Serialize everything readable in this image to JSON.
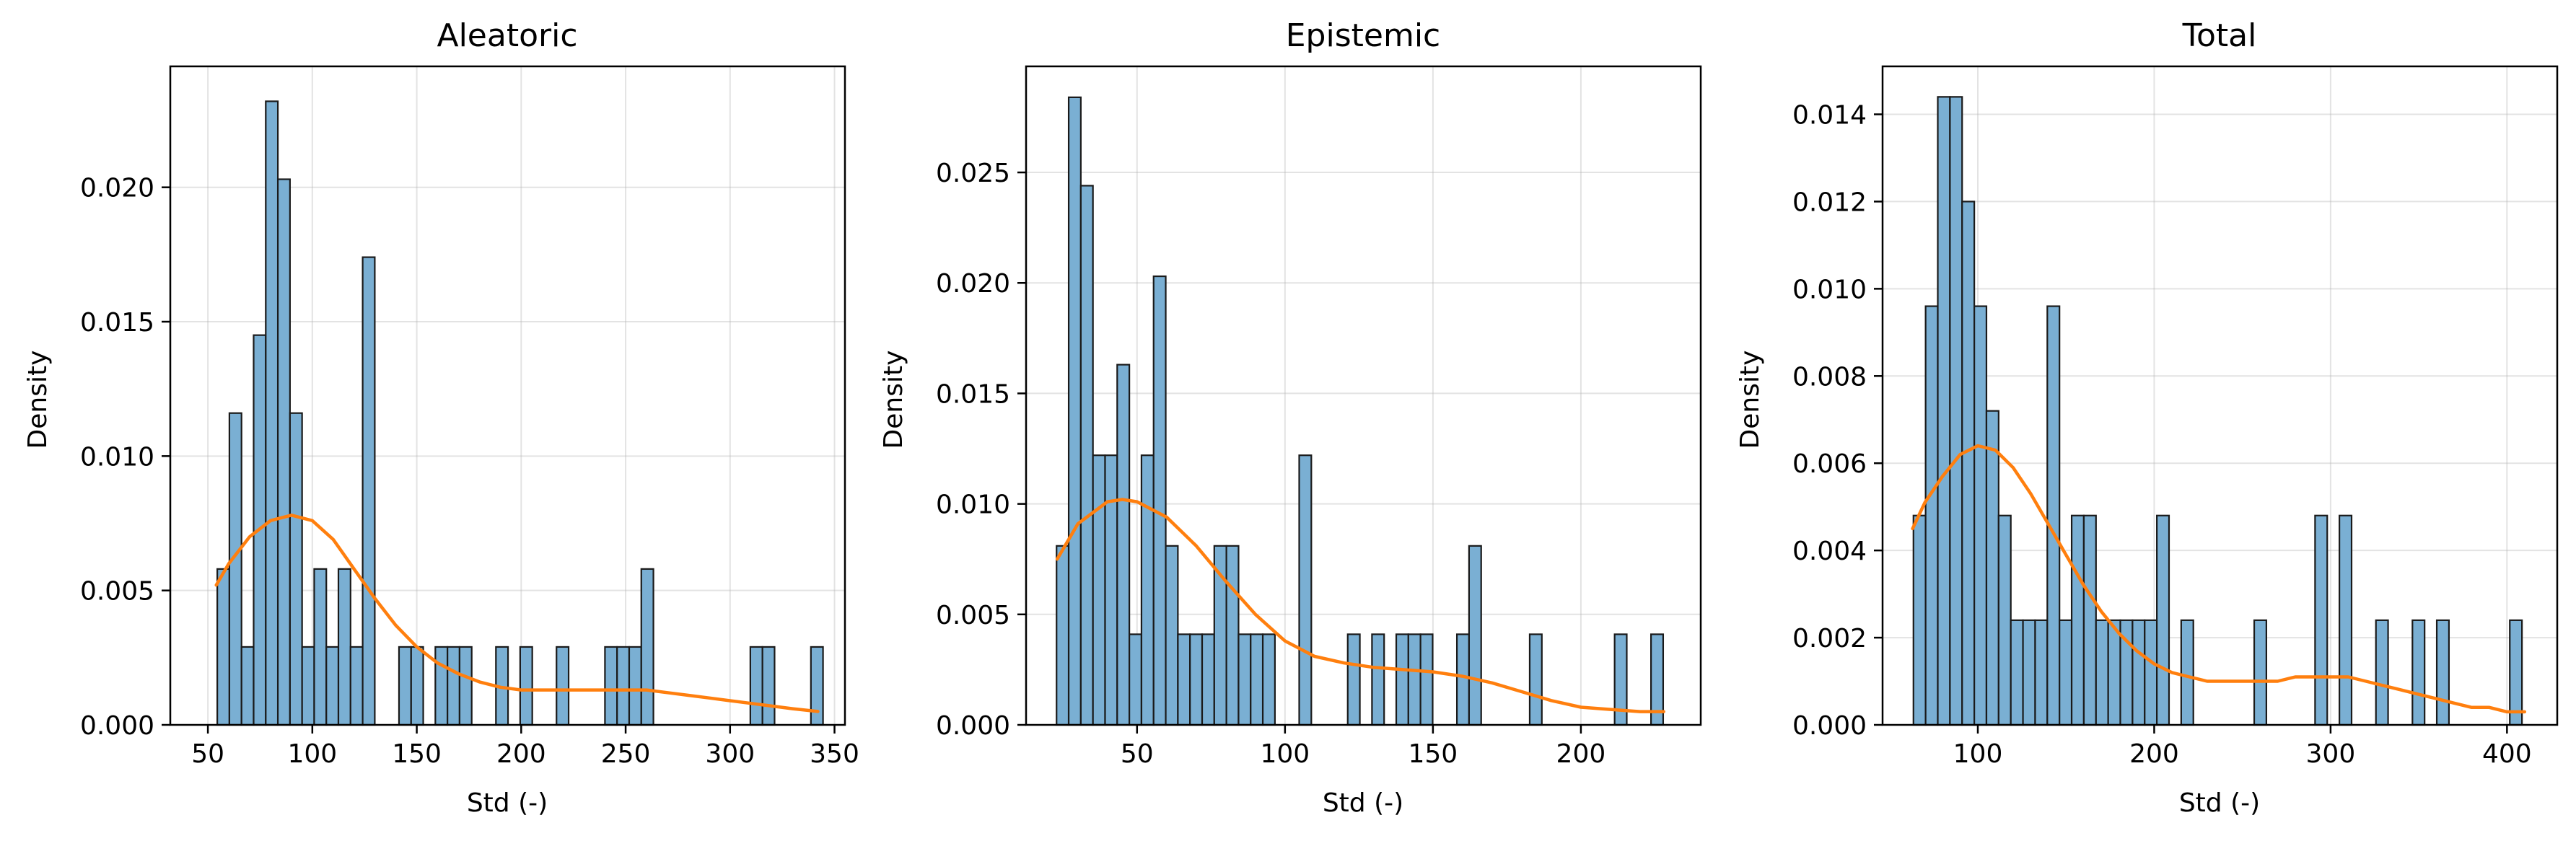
{
  "colors": {
    "bar_fill": "#7aafd3",
    "bar_edge": "#1a1a1a",
    "kde_line": "#ff7f0e",
    "background": "#ffffff"
  },
  "chart_data": [
    {
      "type": "bar",
      "title": "Aleatoric",
      "xlabel": "Std (-)",
      "ylabel": "Density",
      "grid": true,
      "xlim": [
        32,
        355
      ],
      "ylim": [
        0,
        0.0245
      ],
      "xticks": [
        50,
        100,
        150,
        200,
        250,
        300,
        350
      ],
      "xtick_labels": [
        "50",
        "100",
        "150",
        "200",
        "250",
        "300",
        "350"
      ],
      "yticks": [
        0.0,
        0.005,
        0.01,
        0.015,
        0.02
      ],
      "ytick_labels": [
        "0.000",
        "0.005",
        "0.010",
        "0.015",
        "0.020"
      ],
      "bin_edges": [
        54.5,
        60.3,
        66.1,
        71.9,
        77.7,
        83.5,
        89.3,
        95.1,
        100.9,
        106.7,
        112.5,
        118.3,
        124.1,
        129.9,
        135.7,
        141.5,
        147.3,
        153.1,
        158.9,
        164.7,
        170.5,
        176.3,
        182.1,
        187.9,
        193.7,
        199.5,
        205.3,
        211.1,
        216.9,
        222.7,
        228.5,
        234.3,
        240.1,
        245.9,
        251.7,
        257.5,
        263.3,
        269.1,
        274.9,
        280.7,
        286.5,
        292.3,
        298.1,
        303.9,
        309.7,
        315.5,
        321.3,
        327.1,
        332.9,
        338.7,
        344.5
      ],
      "density": [
        0.0058,
        0.0116,
        0.0029,
        0.0145,
        0.0232,
        0.0203,
        0.0116,
        0.0029,
        0.0058,
        0.0029,
        0.0058,
        0.0029,
        0.0174,
        0.0,
        0.0,
        0.0029,
        0.0029,
        0.0,
        0.0029,
        0.0029,
        0.0029,
        0.0,
        0.0,
        0.0029,
        0.0,
        0.0029,
        0.0,
        0.0,
        0.0029,
        0.0,
        0.0,
        0.0,
        0.0029,
        0.0029,
        0.0029,
        0.0058,
        0.0,
        0.0,
        0.0,
        0.0,
        0.0,
        0.0,
        0.0,
        0.0,
        0.0029,
        0.0029,
        0.0,
        0.0,
        0.0,
        0.0029
      ],
      "kde": {
        "x": [
          54,
          60,
          70,
          80,
          90,
          100,
          110,
          120,
          130,
          140,
          150,
          160,
          170,
          180,
          190,
          200,
          210,
          220,
          230,
          240,
          250,
          260,
          270,
          280,
          290,
          300,
          310,
          320,
          330,
          342
        ],
        "y": [
          0.0052,
          0.006,
          0.007,
          0.0076,
          0.0078,
          0.0076,
          0.0069,
          0.0058,
          0.0047,
          0.0037,
          0.0029,
          0.0023,
          0.0019,
          0.0016,
          0.0014,
          0.0013,
          0.0013,
          0.0013,
          0.0013,
          0.0013,
          0.0013,
          0.0013,
          0.0012,
          0.0011,
          0.001,
          0.0009,
          0.0008,
          0.0007,
          0.0006,
          0.0005
        ]
      }
    },
    {
      "type": "bar",
      "title": "Epistemic",
      "xlabel": "Std (-)",
      "ylabel": "Density",
      "grid": true,
      "xlim": [
        12.5,
        240.5
      ],
      "ylim": [
        0,
        0.0298
      ],
      "xticks": [
        50,
        100,
        150,
        200
      ],
      "xtick_labels": [
        "50",
        "100",
        "150",
        "200"
      ],
      "yticks": [
        0.0,
        0.005,
        0.01,
        0.015,
        0.02,
        0.025
      ],
      "ytick_labels": [
        "0.000",
        "0.005",
        "0.010",
        "0.015",
        "0.020",
        "0.025"
      ],
      "bin_edges": [
        22.8,
        26.9,
        31.0,
        35.1,
        39.2,
        43.3,
        47.4,
        51.5,
        55.6,
        59.7,
        63.8,
        67.9,
        72.0,
        76.1,
        80.2,
        84.3,
        88.4,
        92.5,
        96.6,
        100.7,
        104.8,
        108.9,
        113.0,
        117.1,
        121.2,
        125.3,
        129.4,
        133.5,
        137.6,
        141.7,
        145.8,
        149.9,
        154.0,
        158.1,
        162.2,
        166.3,
        170.4,
        174.5,
        178.6,
        182.7,
        186.8,
        190.9,
        195.0,
        199.1,
        203.2,
        207.3,
        211.4,
        215.5,
        219.6,
        223.7,
        227.8
      ],
      "density": [
        0.0081,
        0.0284,
        0.0244,
        0.0122,
        0.0122,
        0.0163,
        0.0041,
        0.0122,
        0.0203,
        0.0081,
        0.0041,
        0.0041,
        0.0041,
        0.0081,
        0.0081,
        0.0041,
        0.0041,
        0.0041,
        0.0,
        0.0,
        0.0122,
        0.0,
        0.0,
        0.0,
        0.0041,
        0.0,
        0.0041,
        0.0,
        0.0041,
        0.0041,
        0.0041,
        0.0,
        0.0,
        0.0041,
        0.0081,
        0.0,
        0.0,
        0.0,
        0.0,
        0.0041,
        0.0,
        0.0,
        0.0,
        0.0,
        0.0,
        0.0,
        0.0041,
        0.0,
        0.0,
        0.0041
      ],
      "kde": {
        "x": [
          23,
          30,
          40,
          45,
          50,
          60,
          70,
          80,
          90,
          100,
          110,
          120,
          130,
          140,
          150,
          160,
          170,
          180,
          190,
          200,
          210,
          220,
          228
        ],
        "y": [
          0.0075,
          0.0091,
          0.0101,
          0.0102,
          0.0101,
          0.0094,
          0.0081,
          0.0065,
          0.005,
          0.0038,
          0.0031,
          0.0028,
          0.0026,
          0.0025,
          0.0024,
          0.0022,
          0.0019,
          0.0015,
          0.0011,
          0.0008,
          0.0007,
          0.0006,
          0.0006
        ]
      }
    },
    {
      "type": "bar",
      "title": "Total",
      "xlabel": "Std (-)",
      "ylabel": "Density",
      "grid": true,
      "xlim": [
        46,
        428.5
      ],
      "ylim": [
        0,
        0.0151
      ],
      "xticks": [
        100,
        200,
        300,
        400
      ],
      "xtick_labels": [
        "100",
        "200",
        "300",
        "400"
      ],
      "yticks": [
        0.0,
        0.002,
        0.004,
        0.006,
        0.008,
        0.01,
        0.012,
        0.014
      ],
      "ytick_labels": [
        "0.000",
        "0.002",
        "0.004",
        "0.006",
        "0.008",
        "0.010",
        "0.012",
        "0.014"
      ],
      "bin_edges": [
        63.5,
        70.4,
        77.3,
        84.2,
        91.1,
        98.0,
        104.9,
        111.8,
        118.7,
        125.6,
        132.5,
        139.4,
        146.3,
        153.2,
        160.1,
        167.0,
        173.9,
        180.8,
        187.7,
        194.6,
        201.5,
        208.4,
        215.3,
        222.2,
        229.1,
        236.0,
        242.9,
        249.8,
        256.7,
        263.6,
        270.5,
        277.4,
        284.3,
        291.2,
        298.1,
        305.0,
        311.9,
        318.8,
        325.7,
        332.6,
        339.5,
        346.4,
        353.3,
        360.2,
        367.1,
        374.0,
        380.9,
        387.8,
        394.7,
        401.6,
        408.5
      ],
      "density": [
        0.0048,
        0.0096,
        0.0144,
        0.0144,
        0.012,
        0.0096,
        0.0072,
        0.0048,
        0.0024,
        0.0024,
        0.0024,
        0.0096,
        0.0024,
        0.0048,
        0.0048,
        0.0024,
        0.0024,
        0.0024,
        0.0024,
        0.0024,
        0.0048,
        0.0,
        0.0024,
        0.0,
        0.0,
        0.0,
        0.0,
        0.0,
        0.0024,
        0.0,
        0.0,
        0.0,
        0.0,
        0.0048,
        0.0,
        0.0048,
        0.0,
        0.0,
        0.0024,
        0.0,
        0.0,
        0.0024,
        0.0,
        0.0024,
        0.0,
        0.0,
        0.0,
        0.0,
        0.0,
        0.0024
      ],
      "kde": {
        "x": [
          63,
          70,
          80,
          90,
          100,
          110,
          120,
          130,
          140,
          150,
          160,
          170,
          180,
          190,
          200,
          210,
          220,
          230,
          240,
          250,
          260,
          270,
          280,
          290,
          300,
          310,
          320,
          330,
          340,
          350,
          360,
          370,
          380,
          390,
          400,
          410
        ],
        "y": [
          0.0045,
          0.0051,
          0.0057,
          0.0062,
          0.0064,
          0.0063,
          0.0059,
          0.0053,
          0.0046,
          0.0039,
          0.0032,
          0.0026,
          0.0021,
          0.0017,
          0.0014,
          0.0012,
          0.0011,
          0.001,
          0.001,
          0.001,
          0.001,
          0.001,
          0.0011,
          0.0011,
          0.0011,
          0.0011,
          0.001,
          0.0009,
          0.0008,
          0.0007,
          0.0006,
          0.0005,
          0.0004,
          0.0004,
          0.0003,
          0.0003
        ]
      }
    }
  ]
}
